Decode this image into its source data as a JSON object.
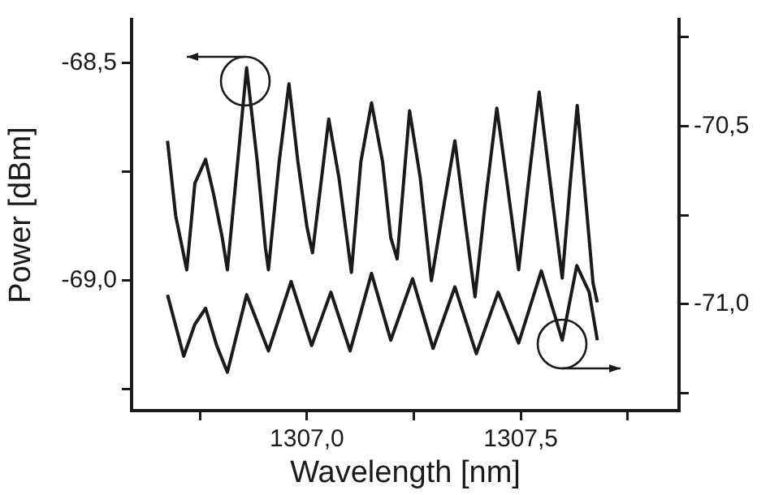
{
  "chart_data": {
    "type": "line",
    "xlabel": "Wavelength [nm]",
    "ylabel": "Power [dBm]",
    "grid": false,
    "legend": false,
    "marker": "none",
    "line_style": "solid",
    "xlim": [
      1306.59,
      1307.87
    ],
    "xticks": [
      {
        "value": 1306.75,
        "label": null
      },
      {
        "value": 1307,
        "label": "1307,0"
      },
      {
        "value": 1307.25,
        "label": null
      },
      {
        "value": 1307.5,
        "label": "1307,5"
      },
      {
        "value": 1307.75,
        "label": null
      }
    ],
    "ylim": [
      -69.3,
      -68.4
    ],
    "yticks": [
      {
        "value": -68.5,
        "label": "-68,5"
      },
      {
        "value": -68.75,
        "label": null
      },
      {
        "value": -69,
        "label": "-69,0"
      },
      {
        "value": -69.25,
        "label": null
      }
    ],
    "y2lim": [
      -71.3,
      -70.2
    ],
    "y2ticks": [
      {
        "value": -70.25,
        "label": null
      },
      {
        "value": -70.5,
        "label": "-70,5"
      },
      {
        "value": -70.75,
        "label": null
      },
      {
        "value": -71,
        "label": "-71,0"
      },
      {
        "value": -71.25,
        "label": null
      }
    ],
    "series": [
      {
        "color": "#1a1a1a",
        "x": [
          1306.674,
          1306.693,
          1306.719,
          1306.738,
          1306.763,
          1306.782,
          1306.802,
          1306.814,
          1306.859,
          1306.884,
          1306.903,
          1306.91,
          1306.935,
          1306.958,
          1306.979,
          1307.0,
          1307.013,
          1307.051,
          1307.075,
          1307.104,
          1307.126,
          1307.151,
          1307.177,
          1307.196,
          1307.211,
          1307.24,
          1307.265,
          1307.291,
          1307.318,
          1307.346,
          1307.369,
          1307.393,
          1307.417,
          1307.444,
          1307.469,
          1307.495,
          1307.519,
          1307.543,
          1307.57,
          1307.597,
          1307.615,
          1307.632,
          1307.654,
          1307.669,
          1307.679
        ],
        "values": [
          -68.679,
          -68.851,
          -68.976,
          -68.777,
          -68.722,
          -68.803,
          -68.902,
          -68.976,
          -68.511,
          -68.728,
          -68.925,
          -68.976,
          -68.728,
          -68.548,
          -68.728,
          -68.877,
          -68.937,
          -68.629,
          -68.765,
          -68.982,
          -68.728,
          -68.592,
          -68.728,
          -68.902,
          -68.951,
          -68.61,
          -68.765,
          -69.001,
          -68.84,
          -68.679,
          -68.858,
          -69.038,
          -68.821,
          -68.604,
          -68.784,
          -68.976,
          -68.765,
          -68.567,
          -68.784,
          -68.995,
          -68.784,
          -68.598,
          -68.84,
          -69.007,
          -69.051
        ]
      },
      {
        "color": "#1a1a1a",
        "axis": "y2",
        "x": [
          1306.674,
          1306.712,
          1306.738,
          1306.763,
          1306.789,
          1306.814,
          1306.859,
          1306.91,
          1306.963,
          1307.011,
          1307.056,
          1307.101,
          1307.151,
          1307.196,
          1307.247,
          1307.295,
          1307.346,
          1307.396,
          1307.447,
          1307.495,
          1307.548,
          1307.597,
          1307.631,
          1307.66,
          1307.679
        ],
        "values": [
          -70.974,
          -71.147,
          -71.057,
          -71.012,
          -71.117,
          -71.192,
          -70.974,
          -71.132,
          -70.937,
          -71.117,
          -70.967,
          -71.132,
          -70.914,
          -71.102,
          -70.929,
          -71.125,
          -70.952,
          -71.14,
          -70.967,
          -71.11,
          -70.907,
          -71.102,
          -70.892,
          -70.967,
          -71.102
        ]
      }
    ]
  }
}
